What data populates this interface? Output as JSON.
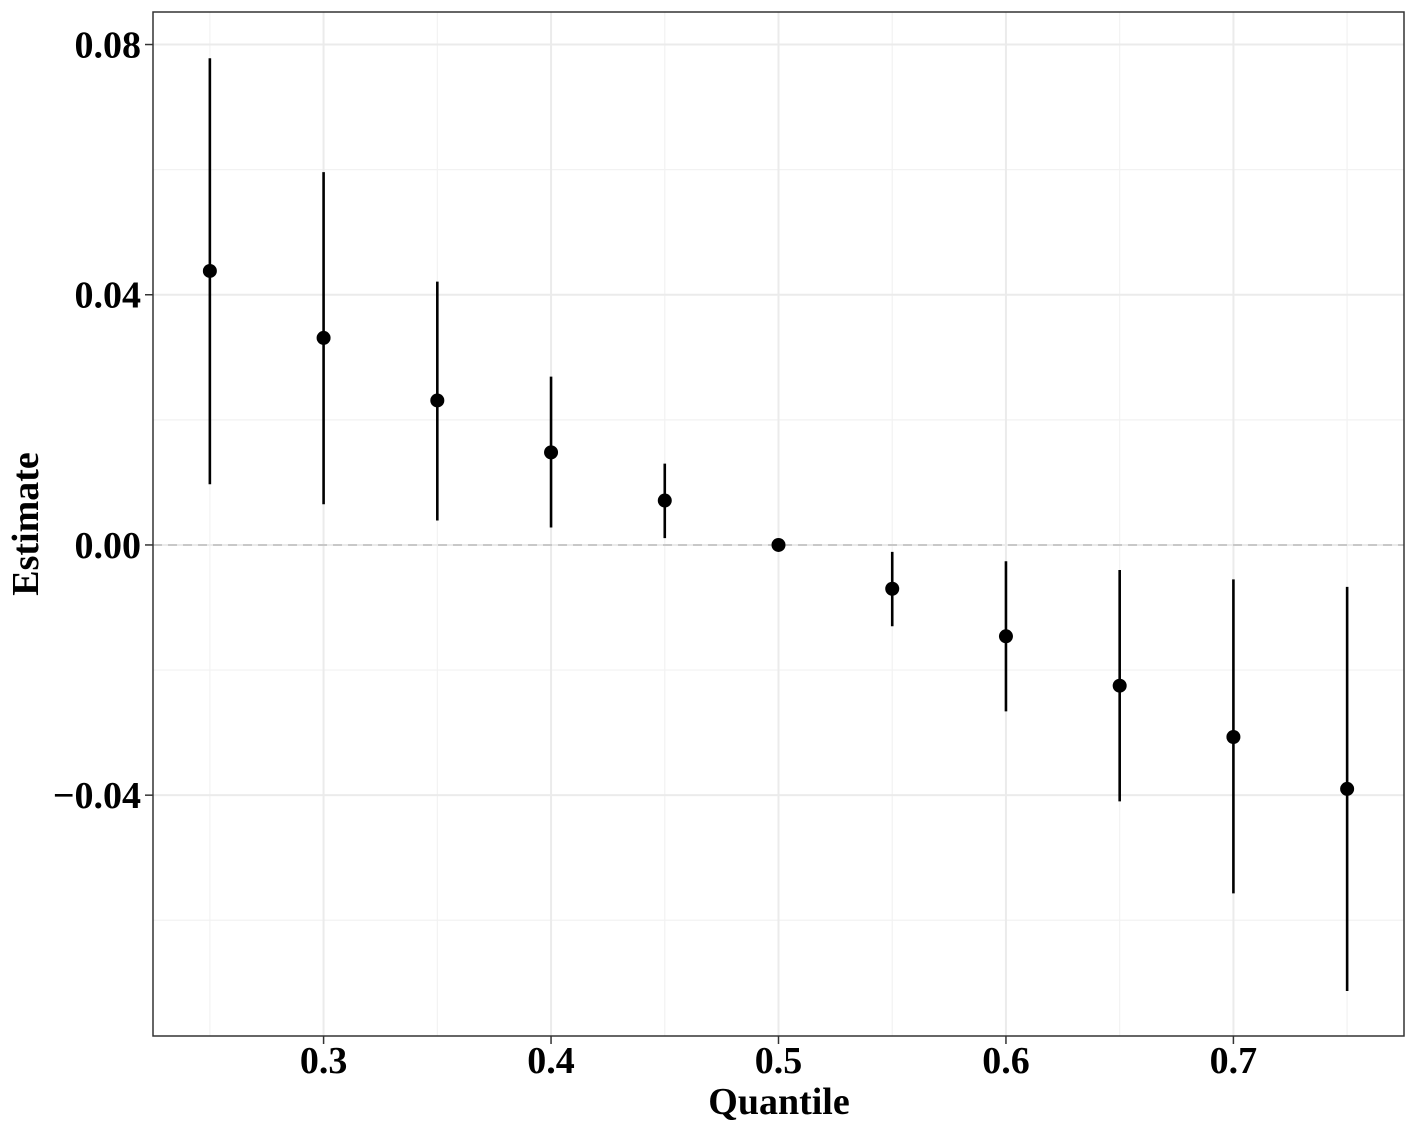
{
  "chart_data": {
    "type": "scatter",
    "title": "",
    "xlabel": "Quantile",
    "ylabel": "Estimate",
    "xlim": [
      0.225,
      0.775
    ],
    "ylim": [
      -0.0785,
      0.0852
    ],
    "x_ticks": [
      0.3,
      0.4,
      0.5,
      0.6,
      0.7
    ],
    "x_tick_labels": [
      "0.3",
      "0.4",
      "0.5",
      "0.6",
      "0.7"
    ],
    "y_ticks": [
      -0.04,
      0.0,
      0.04,
      0.08
    ],
    "y_tick_labels": [
      "−0.04",
      "0.00",
      "0.04",
      "0.08"
    ],
    "reference_line": {
      "y": 0.0,
      "style": "dashed",
      "color": "#c8c8c8"
    },
    "grid": true,
    "points": [
      {
        "x": 0.25,
        "y": 0.0438,
        "low": 0.0097,
        "high": 0.0778
      },
      {
        "x": 0.3,
        "y": 0.0331,
        "low": 0.0065,
        "high": 0.0596
      },
      {
        "x": 0.35,
        "y": 0.0231,
        "low": 0.0039,
        "high": 0.0421
      },
      {
        "x": 0.4,
        "y": 0.0148,
        "low": 0.0028,
        "high": 0.0269
      },
      {
        "x": 0.45,
        "y": 0.0071,
        "low": 0.0011,
        "high": 0.013
      },
      {
        "x": 0.5,
        "y": 0.0,
        "low": 0.0,
        "high": 0.0
      },
      {
        "x": 0.55,
        "y": -0.007,
        "low": -0.013,
        "high": -0.0011
      },
      {
        "x": 0.6,
        "y": -0.0146,
        "low": -0.0266,
        "high": -0.0026
      },
      {
        "x": 0.65,
        "y": -0.0225,
        "low": -0.041,
        "high": -0.004
      },
      {
        "x": 0.7,
        "y": -0.0307,
        "low": -0.0557,
        "high": -0.0055
      },
      {
        "x": 0.75,
        "y": -0.039,
        "low": -0.0713,
        "high": -0.0067
      }
    ],
    "colors": {
      "point": "#000000",
      "grid": "#ebebeb",
      "panel_border": "#333333"
    }
  }
}
